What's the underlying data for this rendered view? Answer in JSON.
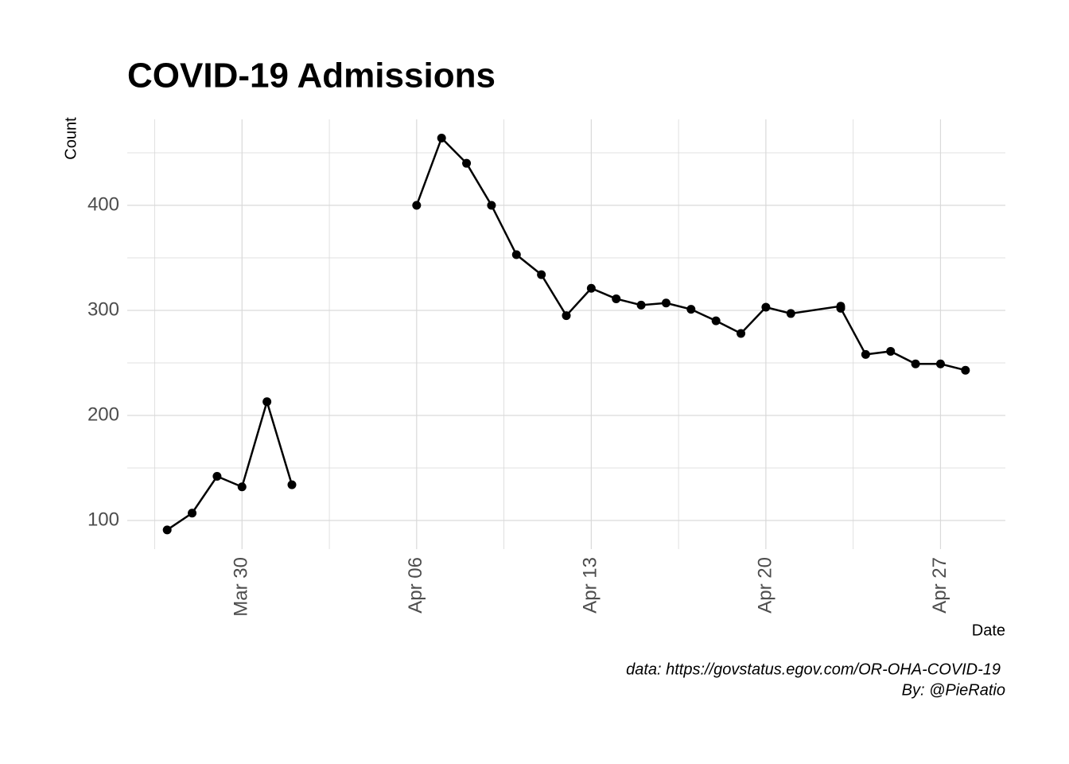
{
  "chart_data": {
    "type": "line",
    "title": "COVID-19 Admissions",
    "x_label": "Date",
    "y_label": "Count",
    "caption": [
      "data: https://govstatus.egov.com/OR-OHA-COVID-19",
      "By: @PieRatio"
    ],
    "x": [
      "Mar 27",
      "Mar 28",
      "Mar 29",
      "Mar 30",
      "Mar 31",
      "Apr 01",
      "Apr 02",
      "Apr 03",
      "Apr 04",
      "Apr 05",
      "Apr 06",
      "Apr 07",
      "Apr 08",
      "Apr 09",
      "Apr 10",
      "Apr 11",
      "Apr 12",
      "Apr 13",
      "Apr 14",
      "Apr 15",
      "Apr 16",
      "Apr 17",
      "Apr 18",
      "Apr 19",
      "Apr 20",
      "Apr 21",
      "Apr 23",
      "Apr 23",
      "Apr 24",
      "Apr 25",
      "Apr 26",
      "Apr 27",
      "Apr 28"
    ],
    "series": [
      {
        "name": "Count",
        "color": "#000000",
        "values": [
          91,
          107,
          142,
          132,
          213,
          134,
          null,
          null,
          null,
          null,
          400,
          464,
          440,
          400,
          353,
          334,
          295,
          321,
          311,
          305,
          307,
          301,
          290,
          278,
          303,
          297,
          304,
          302,
          258,
          261,
          249,
          249,
          243
        ]
      }
    ],
    "xticks": [
      "Mar 30",
      "Apr 06",
      "Apr 13",
      "Apr 20",
      "Apr 27"
    ],
    "ylim": [
      72.7,
      481.8
    ],
    "yticks": [
      100,
      200,
      300,
      400
    ],
    "grid": true
  }
}
